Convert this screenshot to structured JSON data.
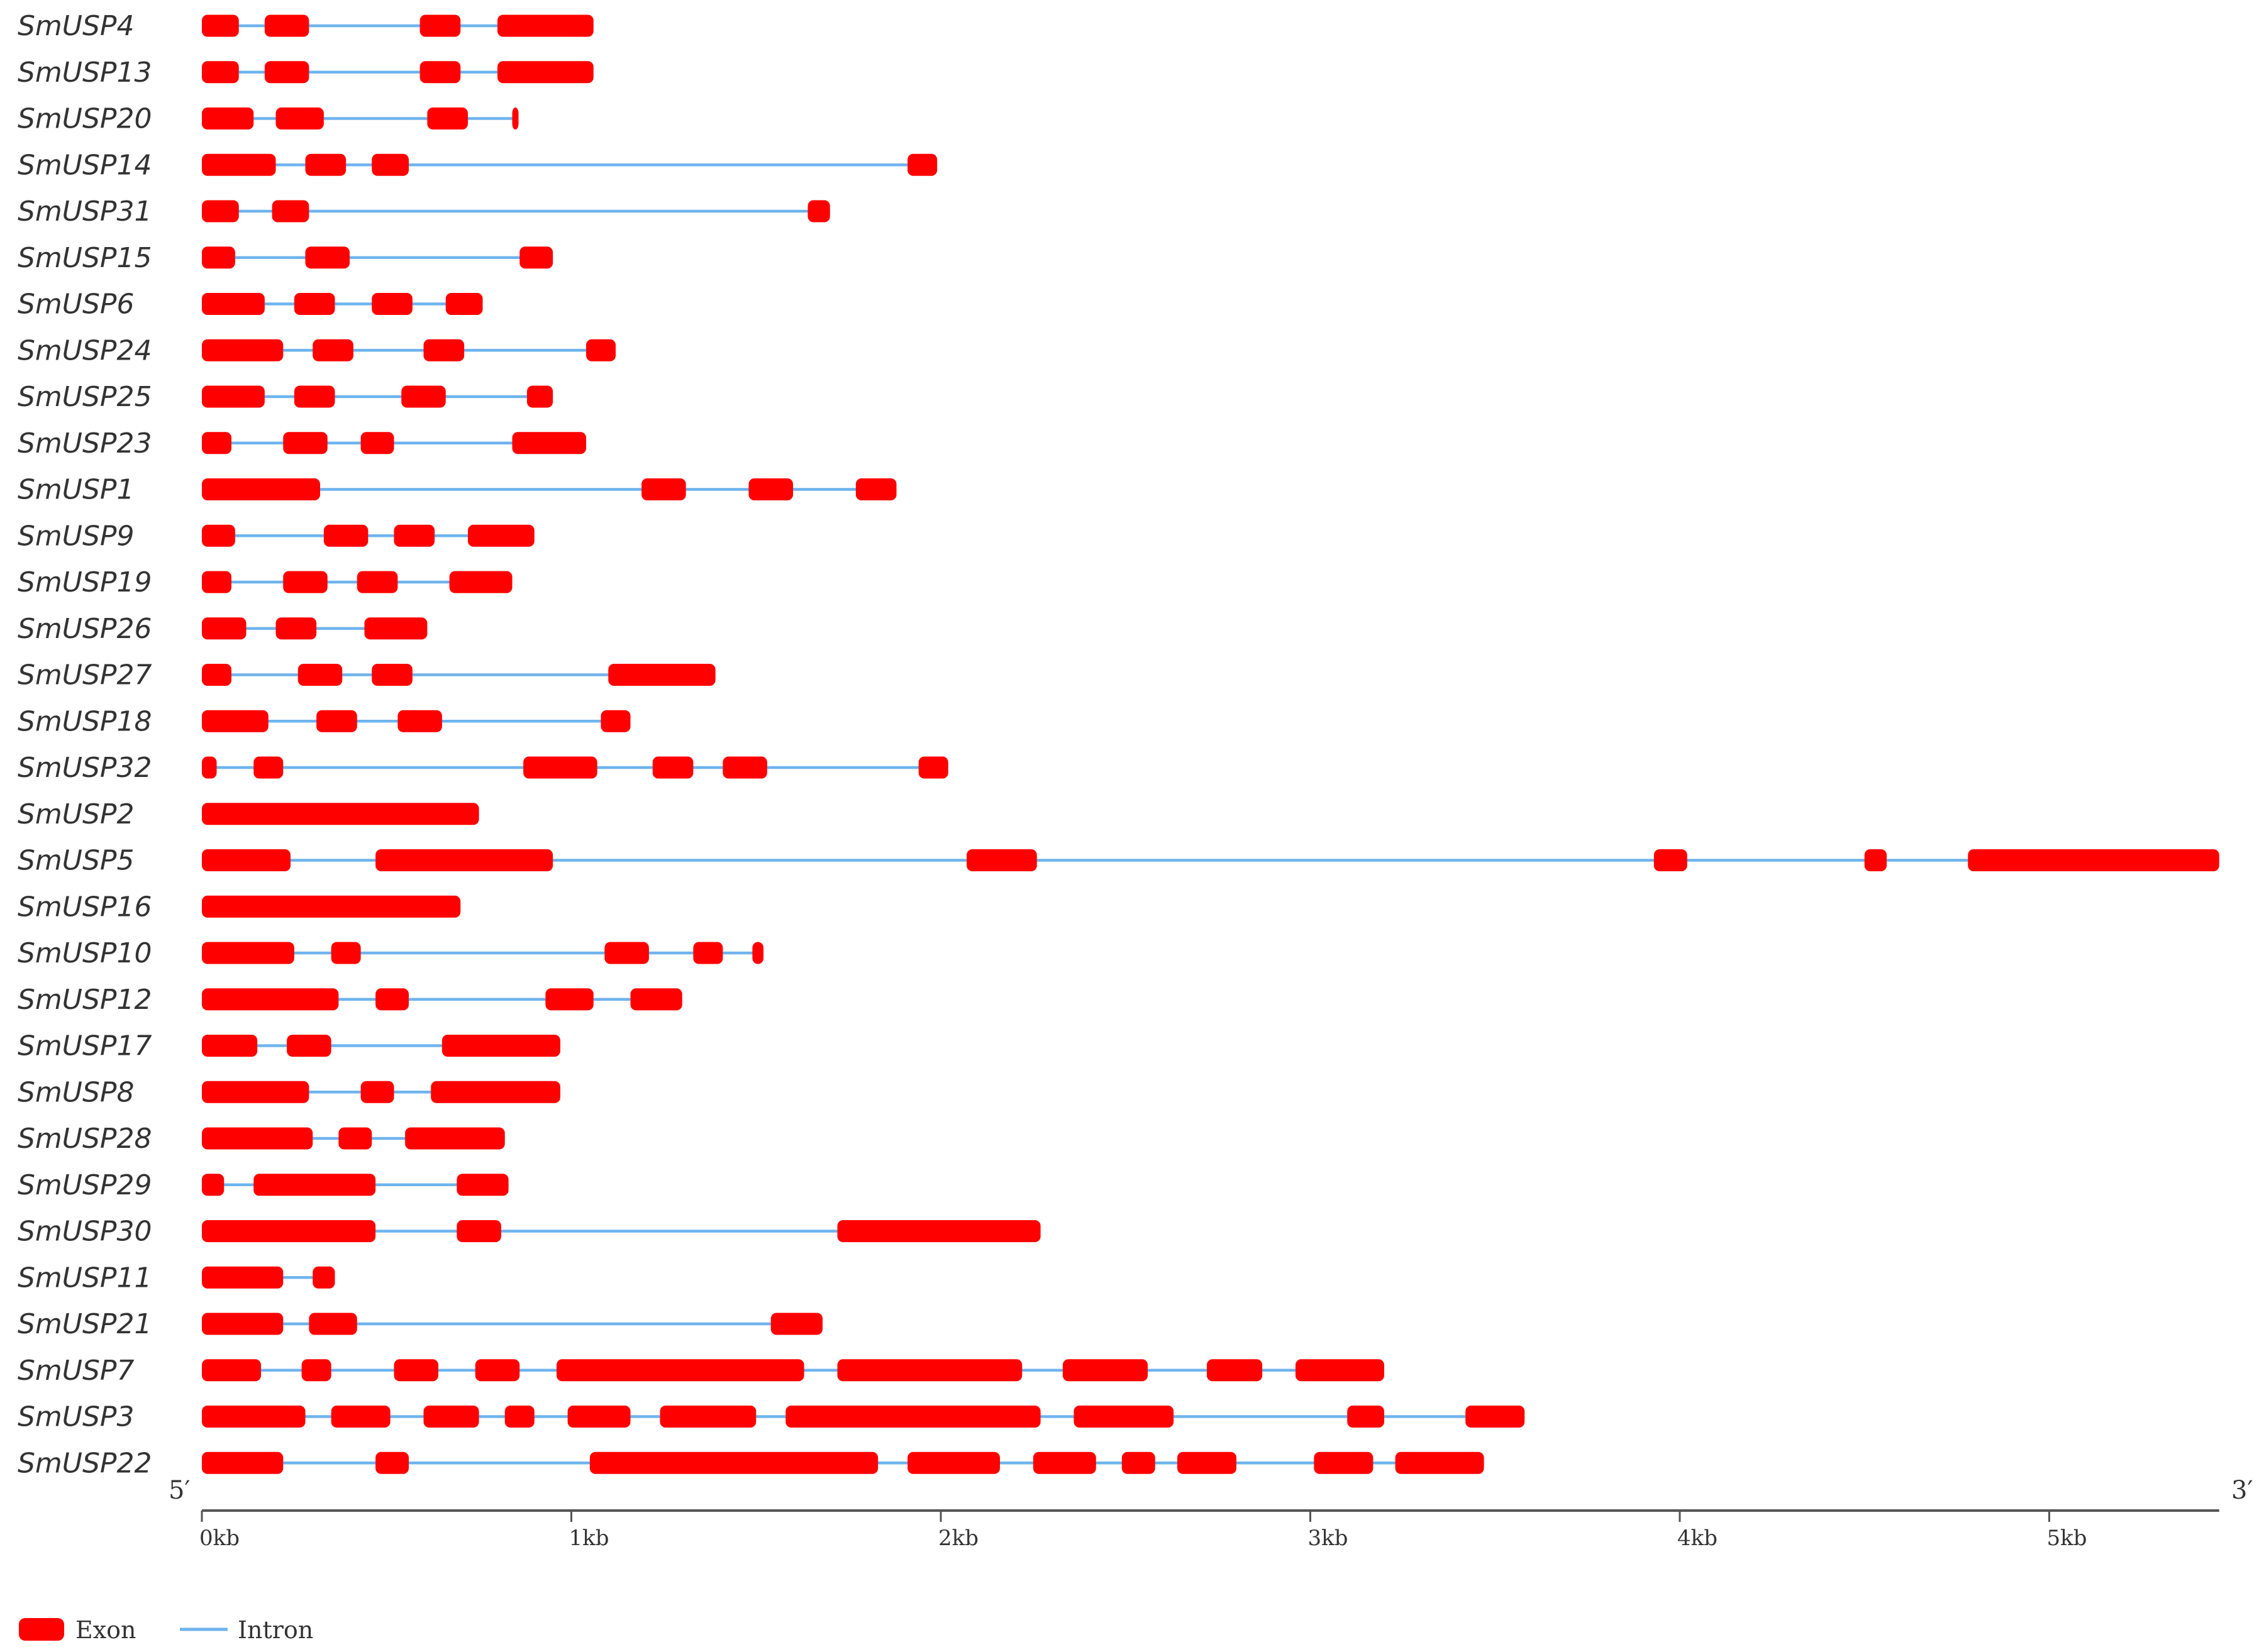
{
  "colors": {
    "exon": "#ff0000",
    "intron": "#6eb4ee",
    "text": "#333333",
    "axis": "#555555"
  },
  "gene_structure": {
    "scale": {
      "min_kb": 0,
      "max_kb": 5.46,
      "tick_labels": [
        "0kb",
        "1kb",
        "2kb",
        "3kb",
        "4kb",
        "5kb"
      ],
      "tick_values_kb": [
        0,
        1,
        2,
        3,
        4,
        5
      ]
    },
    "end_labels": {
      "five_prime": "5′",
      "three_prime": "3′"
    },
    "legend": {
      "exon": "Exon",
      "intron": "Intron"
    },
    "genes": [
      {
        "name": "SmUSP4",
        "length_kb": 1.06,
        "exons": [
          [
            0.0,
            0.1
          ],
          [
            0.17,
            0.29
          ],
          [
            0.59,
            0.7
          ],
          [
            0.8,
            1.06
          ]
        ]
      },
      {
        "name": "SmUSP13",
        "length_kb": 1.06,
        "exons": [
          [
            0.0,
            0.1
          ],
          [
            0.17,
            0.29
          ],
          [
            0.59,
            0.7
          ],
          [
            0.8,
            1.06
          ]
        ]
      },
      {
        "name": "SmUSP20",
        "length_kb": 0.85,
        "exons": [
          [
            0.0,
            0.14
          ],
          [
            0.2,
            0.33
          ],
          [
            0.61,
            0.72
          ],
          [
            0.84,
            0.85
          ]
        ]
      },
      {
        "name": "SmUSP14",
        "length_kb": 1.99,
        "exons": [
          [
            0.0,
            0.2
          ],
          [
            0.28,
            0.39
          ],
          [
            0.46,
            0.56
          ],
          [
            1.91,
            1.99
          ]
        ]
      },
      {
        "name": "SmUSP31",
        "length_kb": 1.7,
        "exons": [
          [
            0.0,
            0.1
          ],
          [
            0.19,
            0.29
          ],
          [
            1.64,
            1.7
          ]
        ]
      },
      {
        "name": "SmUSP15",
        "length_kb": 0.95,
        "exons": [
          [
            0.0,
            0.09
          ],
          [
            0.28,
            0.4
          ],
          [
            0.86,
            0.95
          ]
        ]
      },
      {
        "name": "SmUSP6",
        "length_kb": 0.76,
        "exons": [
          [
            0.0,
            0.17
          ],
          [
            0.25,
            0.36
          ],
          [
            0.46,
            0.57
          ],
          [
            0.66,
            0.76
          ]
        ]
      },
      {
        "name": "SmUSP24",
        "length_kb": 1.12,
        "exons": [
          [
            0.0,
            0.22
          ],
          [
            0.3,
            0.41
          ],
          [
            0.6,
            0.71
          ],
          [
            1.04,
            1.12
          ]
        ]
      },
      {
        "name": "SmUSP25",
        "length_kb": 0.95,
        "exons": [
          [
            0.0,
            0.17
          ],
          [
            0.25,
            0.36
          ],
          [
            0.54,
            0.66
          ],
          [
            0.88,
            0.95
          ]
        ]
      },
      {
        "name": "SmUSP23",
        "length_kb": 1.04,
        "exons": [
          [
            0.0,
            0.08
          ],
          [
            0.22,
            0.34
          ],
          [
            0.43,
            0.52
          ],
          [
            0.84,
            1.04
          ]
        ]
      },
      {
        "name": "SmUSP1",
        "length_kb": 1.88,
        "exons": [
          [
            0.0,
            0.32
          ],
          [
            1.19,
            1.31
          ],
          [
            1.48,
            1.6
          ],
          [
            1.77,
            1.88
          ]
        ]
      },
      {
        "name": "SmUSP9",
        "length_kb": 0.9,
        "exons": [
          [
            0.0,
            0.09
          ],
          [
            0.33,
            0.45
          ],
          [
            0.52,
            0.63
          ],
          [
            0.72,
            0.9
          ]
        ]
      },
      {
        "name": "SmUSP19",
        "length_kb": 0.84,
        "exons": [
          [
            0.0,
            0.08
          ],
          [
            0.22,
            0.34
          ],
          [
            0.42,
            0.53
          ],
          [
            0.67,
            0.84
          ]
        ]
      },
      {
        "name": "SmUSP26",
        "length_kb": 0.61,
        "exons": [
          [
            0.0,
            0.12
          ],
          [
            0.2,
            0.31
          ],
          [
            0.44,
            0.61
          ]
        ]
      },
      {
        "name": "SmUSP27",
        "length_kb": 1.39,
        "exons": [
          [
            0.0,
            0.08
          ],
          [
            0.26,
            0.38
          ],
          [
            0.46,
            0.57
          ],
          [
            1.1,
            1.39
          ]
        ]
      },
      {
        "name": "SmUSP18",
        "length_kb": 1.16,
        "exons": [
          [
            0.0,
            0.18
          ],
          [
            0.31,
            0.42
          ],
          [
            0.53,
            0.65
          ],
          [
            1.08,
            1.16
          ]
        ]
      },
      {
        "name": "SmUSP32",
        "length_kb": 2.02,
        "exons": [
          [
            0.0,
            0.04
          ],
          [
            0.14,
            0.22
          ],
          [
            0.87,
            1.07
          ],
          [
            1.22,
            1.33
          ],
          [
            1.41,
            1.53
          ],
          [
            1.94,
            2.02
          ]
        ]
      },
      {
        "name": "SmUSP2",
        "length_kb": 0.75,
        "exons": [
          [
            0.0,
            0.75
          ]
        ]
      },
      {
        "name": "SmUSP5",
        "length_kb": 5.46,
        "exons": [
          [
            0.0,
            0.24
          ],
          [
            0.47,
            0.95
          ],
          [
            2.07,
            2.26
          ],
          [
            3.93,
            4.02
          ],
          [
            4.5,
            4.56
          ],
          [
            4.78,
            5.46
          ]
        ]
      },
      {
        "name": "SmUSP16",
        "length_kb": 0.7,
        "exons": [
          [
            0.0,
            0.7
          ]
        ]
      },
      {
        "name": "SmUSP10",
        "length_kb": 1.52,
        "exons": [
          [
            0.0,
            0.25
          ],
          [
            0.35,
            0.43
          ],
          [
            1.09,
            1.21
          ],
          [
            1.33,
            1.41
          ],
          [
            1.49,
            1.52
          ]
        ]
      },
      {
        "name": "SmUSP12",
        "length_kb": 1.3,
        "exons": [
          [
            0.0,
            0.37
          ],
          [
            0.47,
            0.56
          ],
          [
            0.93,
            1.06
          ],
          [
            1.16,
            1.3
          ]
        ]
      },
      {
        "name": "SmUSP17",
        "length_kb": 0.97,
        "exons": [
          [
            0.0,
            0.15
          ],
          [
            0.23,
            0.35
          ],
          [
            0.65,
            0.97
          ]
        ]
      },
      {
        "name": "SmUSP8",
        "length_kb": 0.97,
        "exons": [
          [
            0.0,
            0.29
          ],
          [
            0.43,
            0.52
          ],
          [
            0.62,
            0.97
          ]
        ]
      },
      {
        "name": "SmUSP28",
        "length_kb": 0.82,
        "exons": [
          [
            0.0,
            0.3
          ],
          [
            0.37,
            0.46
          ],
          [
            0.55,
            0.82
          ]
        ]
      },
      {
        "name": "SmUSP29",
        "length_kb": 0.83,
        "exons": [
          [
            0.0,
            0.06
          ],
          [
            0.14,
            0.47
          ],
          [
            0.69,
            0.83
          ]
        ]
      },
      {
        "name": "SmUSP30",
        "length_kb": 2.27,
        "exons": [
          [
            0.0,
            0.47
          ],
          [
            0.69,
            0.81
          ],
          [
            1.72,
            2.27
          ]
        ]
      },
      {
        "name": "SmUSP11",
        "length_kb": 0.36,
        "exons": [
          [
            0.0,
            0.22
          ],
          [
            0.3,
            0.36
          ]
        ]
      },
      {
        "name": "SmUSP21",
        "length_kb": 1.68,
        "exons": [
          [
            0.0,
            0.22
          ],
          [
            0.29,
            0.42
          ],
          [
            1.54,
            1.68
          ]
        ]
      },
      {
        "name": "SmUSP7",
        "length_kb": 3.2,
        "exons": [
          [
            0.0,
            0.16
          ],
          [
            0.27,
            0.35
          ],
          [
            0.52,
            0.64
          ],
          [
            0.74,
            0.86
          ],
          [
            0.96,
            1.63
          ],
          [
            1.72,
            2.22
          ],
          [
            2.33,
            2.56
          ],
          [
            2.72,
            2.87
          ],
          [
            2.96,
            3.2
          ]
        ]
      },
      {
        "name": "SmUSP3",
        "length_kb": 3.58,
        "exons": [
          [
            0.0,
            0.28
          ],
          [
            0.35,
            0.51
          ],
          [
            0.6,
            0.75
          ],
          [
            0.82,
            0.9
          ],
          [
            0.99,
            1.16
          ],
          [
            1.24,
            1.5
          ],
          [
            1.58,
            2.27
          ],
          [
            2.36,
            2.63
          ],
          [
            3.1,
            3.2
          ],
          [
            3.42,
            3.58
          ]
        ]
      },
      {
        "name": "SmUSP22",
        "length_kb": 3.47,
        "exons": [
          [
            0.0,
            0.22
          ],
          [
            0.47,
            0.56
          ],
          [
            1.05,
            1.83
          ],
          [
            1.91,
            2.16
          ],
          [
            2.25,
            2.42
          ],
          [
            2.49,
            2.58
          ],
          [
            2.64,
            2.8
          ],
          [
            3.01,
            3.17
          ],
          [
            3.23,
            3.47
          ]
        ]
      }
    ]
  }
}
